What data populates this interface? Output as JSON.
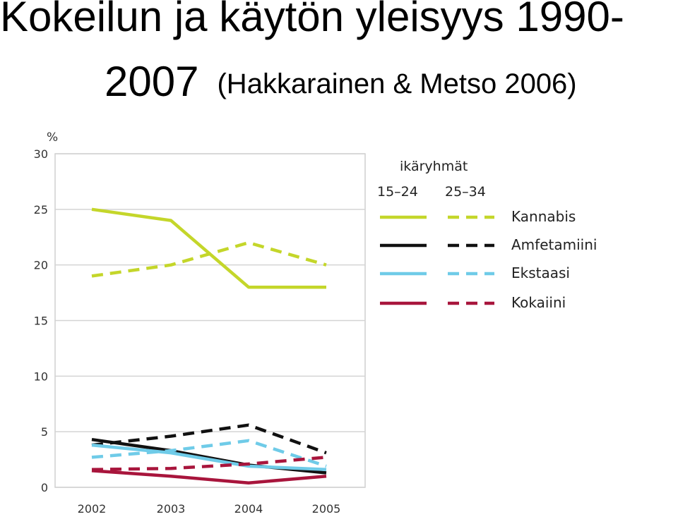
{
  "slide": {
    "title_line1": "Kokeilun ja käytön yleisyys 1990-",
    "title_line2": "2007",
    "subtitle": "(Hakkarainen & Metso 2006)"
  },
  "chart_data": {
    "type": "line",
    "ylabel": "%",
    "ylim": [
      0,
      30
    ],
    "yticks": [
      0,
      5,
      10,
      15,
      20,
      25,
      30
    ],
    "categories": [
      "2002",
      "2003",
      "2004",
      "2005"
    ],
    "grid": true,
    "legend": {
      "placement": "top-right",
      "title": "ikäryhmät",
      "group_labels": [
        "15–24",
        "25–34"
      ],
      "entries": [
        "Kannabis",
        "Amfetamiini",
        "Ekstaasi",
        "Kokaiini"
      ]
    },
    "series": [
      {
        "substance": "Kannabis",
        "group": "15–24",
        "dash": false,
        "color": "#c4d62a",
        "values": [
          25,
          24,
          18,
          18
        ]
      },
      {
        "substance": "Kannabis",
        "group": "25–34",
        "dash": true,
        "color": "#c4d62a",
        "values": [
          19,
          20,
          22,
          20
        ]
      },
      {
        "substance": "Amfetamiini",
        "group": "15–24",
        "dash": false,
        "color": "#111111",
        "values": [
          4.3,
          3.3,
          2.0,
          1.3
        ]
      },
      {
        "substance": "Amfetamiini",
        "group": "25–34",
        "dash": true,
        "color": "#111111",
        "values": [
          3.8,
          4.6,
          5.6,
          3.1
        ]
      },
      {
        "substance": "Ekstaasi",
        "group": "15–24",
        "dash": false,
        "color": "#6fcbe8",
        "values": [
          3.8,
          3.1,
          1.9,
          1.6
        ]
      },
      {
        "substance": "Ekstaasi",
        "group": "25–34",
        "dash": true,
        "color": "#6fcbe8",
        "values": [
          2.7,
          3.3,
          4.2,
          1.9
        ]
      },
      {
        "substance": "Kokaiini",
        "group": "15–24",
        "dash": false,
        "color": "#a8153c",
        "values": [
          1.5,
          1.0,
          0.4,
          1.0
        ]
      },
      {
        "substance": "Kokaiini",
        "group": "25–34",
        "dash": true,
        "color": "#a8153c",
        "values": [
          1.6,
          1.7,
          2.1,
          2.7
        ]
      }
    ]
  }
}
